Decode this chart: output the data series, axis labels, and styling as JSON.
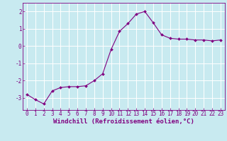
{
  "x": [
    0,
    1,
    2,
    3,
    4,
    5,
    6,
    7,
    8,
    9,
    10,
    11,
    12,
    13,
    14,
    15,
    16,
    17,
    18,
    19,
    20,
    21,
    22,
    23
  ],
  "y": [
    -2.8,
    -3.1,
    -3.35,
    -2.6,
    -2.4,
    -2.35,
    -2.35,
    -2.3,
    -2.0,
    -1.6,
    -0.2,
    0.85,
    1.3,
    1.85,
    2.0,
    1.35,
    0.65,
    0.45,
    0.4,
    0.4,
    0.35,
    0.35,
    0.3,
    0.35
  ],
  "line_color": "#800080",
  "marker": "D",
  "marker_size": 2,
  "bg_color": "#c8eaf0",
  "grid_color": "#ffffff",
  "xlabel": "Windchill (Refroidissement éolien,°C)",
  "ylim": [
    -3.7,
    2.5
  ],
  "xlim": [
    -0.5,
    23.5
  ],
  "yticks": [
    -3,
    -2,
    -1,
    0,
    1,
    2
  ],
  "xticks": [
    0,
    1,
    2,
    3,
    4,
    5,
    6,
    7,
    8,
    9,
    10,
    11,
    12,
    13,
    14,
    15,
    16,
    17,
    18,
    19,
    20,
    21,
    22,
    23
  ],
  "tick_color": "#800080",
  "label_color": "#800080",
  "tick_fontsize": 5.5,
  "xlabel_fontsize": 6.5,
  "linewidth": 0.8,
  "spine_color": "#800080",
  "spine_linewidth": 0.6
}
